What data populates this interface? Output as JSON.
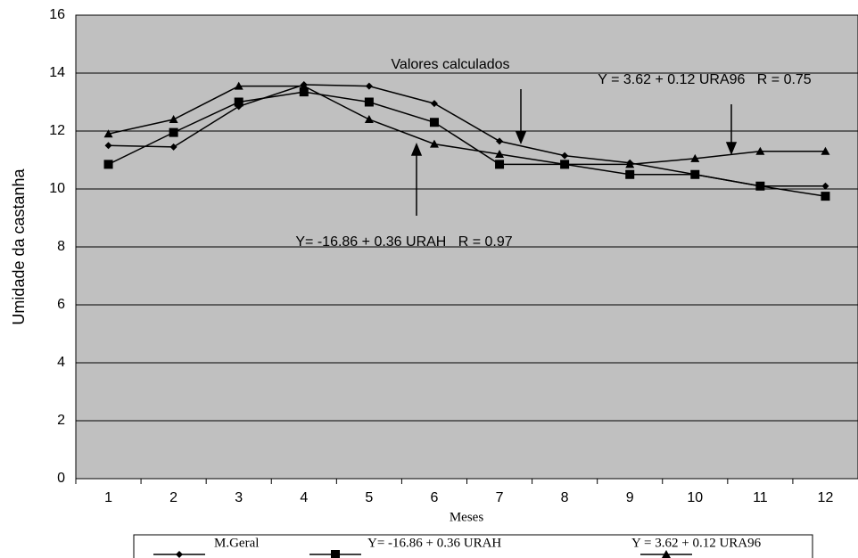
{
  "chart_data": {
    "type": "line",
    "y_label": "Umidade da castanha",
    "x_label": "Meses",
    "categories": [
      "1",
      "2",
      "3",
      "4",
      "5",
      "6",
      "7",
      "8",
      "9",
      "10",
      "11",
      "12"
    ],
    "series": [
      {
        "name": "M.Geral",
        "color": "#000000",
        "marker": "diamond",
        "values": [
          11.5,
          11.45,
          12.85,
          13.6,
          13.55,
          12.95,
          11.65,
          11.15,
          10.9,
          10.5,
          10.1,
          10.1
        ]
      },
      {
        "name": "Y= -16.86 + 0.36 URAH",
        "color": "#000000",
        "marker": "square",
        "values": [
          10.85,
          11.95,
          13.0,
          13.35,
          13.0,
          12.3,
          10.85,
          10.85,
          10.5,
          10.5,
          10.1,
          9.75
        ]
      },
      {
        "name": "Y = 3.62 + 0.12 URA96",
        "color": "#000000",
        "marker": "triangle",
        "values": [
          11.9,
          12.4,
          13.55,
          13.55,
          12.4,
          11.55,
          11.2,
          10.85,
          10.85,
          11.05,
          11.3,
          11.3
        ]
      }
    ],
    "annotations": [
      "Valores calculados",
      "Y = 3.62 + 0.12 URA96   R = 0.75",
      "Y= -16.86 + 0.36 URAH   R = 0.97"
    ],
    "ylim": [
      0,
      16
    ],
    "yticks": [
      0,
      2,
      4,
      6,
      8,
      10,
      12,
      14,
      16
    ],
    "grid": true,
    "background": "#c0c0c0"
  }
}
